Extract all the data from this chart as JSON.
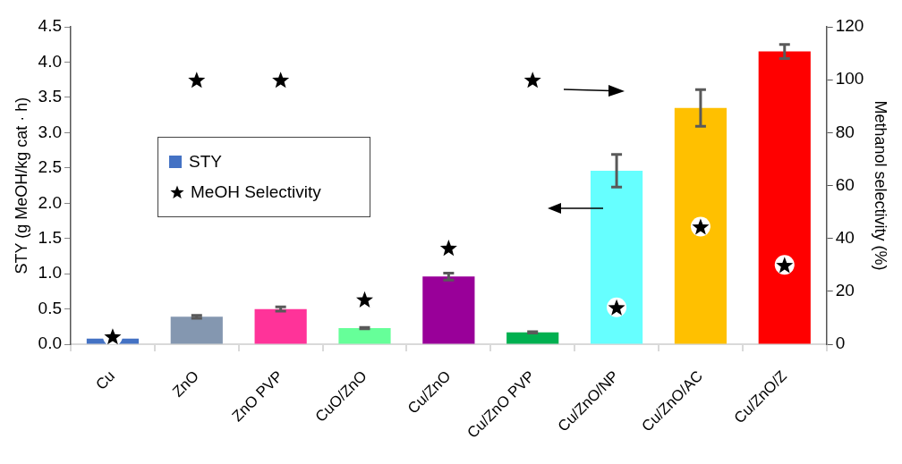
{
  "chart_data": {
    "type": "bar",
    "ylabel": "STY (g MeOH/kg cat · h)",
    "y2label": "Methanol selectivity (%)",
    "categories": [
      "Cu",
      "ZnO",
      "ZnO PVP",
      "CuO/ZnO",
      "Cu/ZnO",
      "Cu/ZnO PVP",
      "Cu/ZnO/NP",
      "Cu/ZnO/AC",
      "Cu/ZnO/Z"
    ],
    "series": [
      {
        "name": "STY",
        "color": "#4472c4",
        "colors": [
          "#4472c4",
          "#8497b0",
          "#ff3399",
          "#66ff99",
          "#990099",
          "#00b050",
          "#66ffff",
          "#ffc000",
          "#ff0000"
        ],
        "values": [
          0.08,
          0.39,
          0.5,
          0.23,
          0.96,
          0.17,
          2.46,
          3.35,
          4.15
        ],
        "errors": [
          null,
          0.02,
          0.03,
          0.01,
          0.05,
          0.01,
          0.23,
          0.26,
          0.1
        ]
      },
      {
        "name": "MeOH Selectivity",
        "type": "scatter",
        "axis": "y2",
        "color": "#000000",
        "marker": "star",
        "values": [
          3,
          100,
          100,
          17,
          36.5,
          100,
          14,
          44.5,
          30
        ]
      }
    ],
    "ylim": [
      0,
      4.5
    ],
    "yticks": [
      {
        "value": 0,
        "label": "0.0"
      },
      0.5,
      {
        "value": 1,
        "label": "1.0"
      },
      1.5,
      {
        "value": 2,
        "label": "2.0"
      },
      2.5,
      {
        "value": 3,
        "label": "3.0"
      },
      3.5,
      {
        "value": 4,
        "label": "4.0"
      },
      4.5
    ],
    "y2lim": [
      0,
      120
    ],
    "y2ticks": [
      0,
      20,
      40,
      60,
      80,
      100,
      120
    ],
    "grid": false,
    "legend": "left"
  }
}
